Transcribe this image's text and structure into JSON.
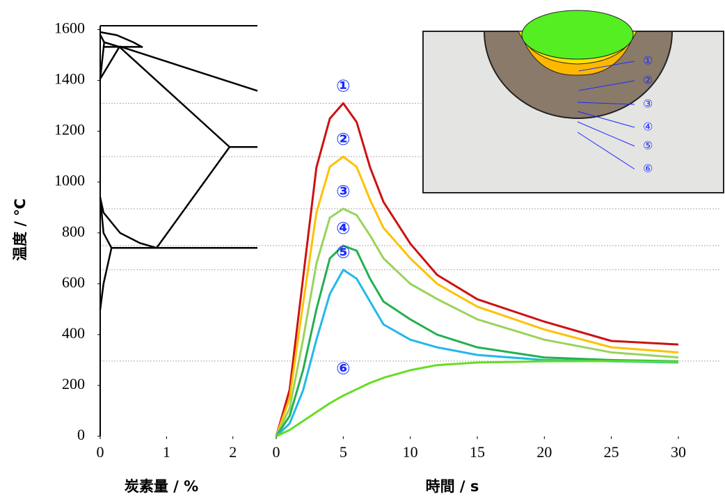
{
  "chart_data": [
    {
      "type": "line",
      "xlabel": "炭素量 / %",
      "ylabel": "温度 / ℃",
      "xlim": [
        0,
        2.37
      ],
      "xticks": [
        0,
        1,
        2
      ],
      "ylim": [
        0,
        1615
      ],
      "yticks": [
        0,
        200,
        400,
        600,
        800,
        1000,
        1200,
        1400,
        1600
      ],
      "series": [
        {
          "color": "#000000",
          "x": [
            0,
            0.25,
            0.5,
            0.64
          ],
          "values": [
            1590,
            1578,
            1550,
            1530
          ]
        },
        {
          "color": "#000000",
          "x": [
            0.29,
            2.37
          ],
          "values": [
            1534,
            1359
          ]
        },
        {
          "color": "#000000",
          "x": [
            0.06,
            0.64
          ],
          "values": [
            1532,
            1532
          ]
        },
        {
          "color": "#000000",
          "x": [
            0,
            0.06,
            0.29
          ],
          "values": [
            1580,
            1550,
            1532
          ]
        },
        {
          "color": "#000000",
          "x": [
            0.06,
            0
          ],
          "values": [
            1550,
            1406
          ]
        },
        {
          "color": "#000000",
          "x": [
            0.29,
            0
          ],
          "values": [
            1532,
            1406
          ]
        },
        {
          "color": "#000000",
          "x": [
            0.29,
            1.95
          ],
          "values": [
            1532,
            1138
          ]
        },
        {
          "color": "#000000",
          "x": [
            1.95,
            2.37
          ],
          "values": [
            1138,
            1138
          ]
        },
        {
          "color": "#000000",
          "x": [
            0,
            0.05,
            0.3,
            0.6,
            0.85
          ],
          "values": [
            940,
            880,
            800,
            760,
            741
          ]
        },
        {
          "color": "#000000",
          "x": [
            0.85,
            1.95
          ],
          "values": [
            741,
            1138
          ]
        },
        {
          "color": "#000000",
          "x": [
            0.17,
            2.37
          ],
          "values": [
            741,
            741
          ]
        },
        {
          "color": "#000000",
          "x": [
            0,
            0.05,
            0.17
          ],
          "values": [
            940,
            800,
            741
          ]
        },
        {
          "color": "#000000",
          "x": [
            0.17,
            0.05,
            0
          ],
          "values": [
            741,
            600,
            498
          ]
        }
      ]
    },
    {
      "type": "line",
      "xlabel": "時間 / s",
      "xlim": [
        0,
        30
      ],
      "xticks": [
        0,
        5,
        10,
        15,
        20,
        25,
        30
      ],
      "ylim": [
        0,
        1615
      ],
      "x": [
        0,
        1,
        2,
        3,
        4,
        5,
        6,
        7,
        8,
        10,
        12,
        15,
        20,
        25,
        30
      ],
      "series": [
        {
          "name": "①",
          "color": "#cc1111",
          "values": [
            0,
            183,
            621,
            1058,
            1250,
            1310,
            1236,
            1058,
            922,
            758,
            635,
            539,
            451,
            375,
            361
          ]
        },
        {
          "name": "②",
          "color": "#ffc000",
          "values": [
            0,
            150,
            520,
            880,
            1060,
            1100,
            1060,
            930,
            820,
            700,
            600,
            510,
            420,
            350,
            330
          ]
        },
        {
          "name": "③",
          "color": "#99d35a",
          "values": [
            0,
            110,
            380,
            680,
            860,
            895,
            870,
            790,
            700,
            600,
            540,
            460,
            380,
            330,
            310
          ]
        },
        {
          "name": "④",
          "color": "#22b050",
          "values": [
            0,
            80,
            260,
            500,
            700,
            750,
            730,
            620,
            530,
            460,
            400,
            350,
            310,
            300,
            295
          ]
        },
        {
          "name": "⑤",
          "color": "#22b8e8",
          "values": [
            0,
            50,
            180,
            380,
            560,
            655,
            620,
            530,
            440,
            380,
            350,
            320,
            300,
            295,
            290
          ]
        },
        {
          "name": "⑥",
          "color": "#66dd22",
          "values": [
            0,
            25,
            60,
            95,
            130,
            160,
            185,
            210,
            230,
            260,
            280,
            290,
            295,
            296,
            293
          ]
        }
      ]
    }
  ]
}
